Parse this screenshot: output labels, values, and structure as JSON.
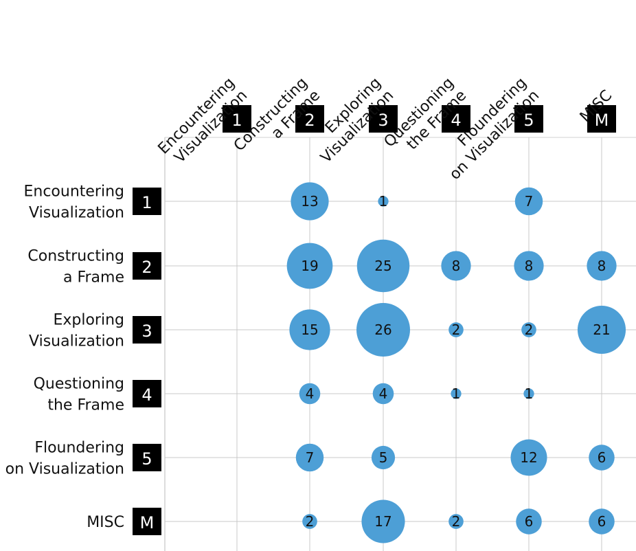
{
  "chart_data": {
    "type": "bubble-matrix",
    "columns": [
      {
        "code": "1",
        "label_lines": [
          "Encountering",
          "Visualization"
        ]
      },
      {
        "code": "2",
        "label_lines": [
          "Constructing",
          "a Frame"
        ]
      },
      {
        "code": "3",
        "label_lines": [
          "Exploring",
          "Visualization"
        ]
      },
      {
        "code": "4",
        "label_lines": [
          "Questioning",
          "the Frame"
        ]
      },
      {
        "code": "5",
        "label_lines": [
          "Floundering",
          "on Visualization"
        ]
      },
      {
        "code": "M",
        "label_lines": [
          "MISC"
        ]
      }
    ],
    "rows": [
      {
        "code": "1",
        "label_lines": [
          "Encountering",
          "Visualization"
        ]
      },
      {
        "code": "2",
        "label_lines": [
          "Constructing",
          "a Frame"
        ]
      },
      {
        "code": "3",
        "label_lines": [
          "Exploring",
          "Visualization"
        ]
      },
      {
        "code": "4",
        "label_lines": [
          "Questioning",
          "the Frame"
        ]
      },
      {
        "code": "5",
        "label_lines": [
          "Floundering",
          "on Visualization"
        ]
      },
      {
        "code": "M",
        "label_lines": [
          "MISC"
        ]
      }
    ],
    "values": [
      [
        null,
        13,
        1,
        null,
        7,
        null
      ],
      [
        null,
        19,
        25,
        8,
        8,
        8
      ],
      [
        null,
        15,
        26,
        2,
        2,
        21
      ],
      [
        null,
        4,
        4,
        1,
        1,
        null
      ],
      [
        null,
        7,
        5,
        null,
        12,
        6
      ],
      [
        null,
        2,
        17,
        2,
        6,
        6
      ]
    ],
    "bubble_color": "#4d9fd6",
    "badge_color": "#000000",
    "grid": true,
    "legend": false
  }
}
